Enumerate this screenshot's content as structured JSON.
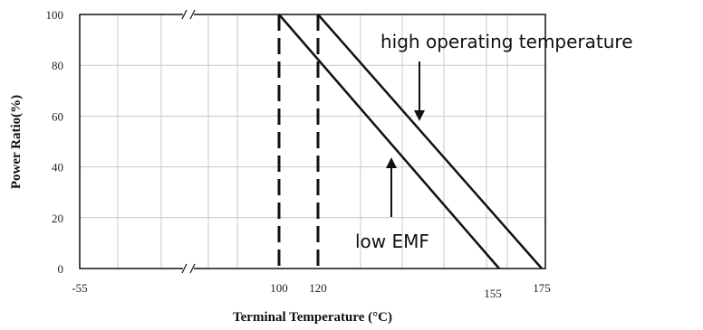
{
  "chart_data": {
    "type": "line",
    "xlabel": "Terminal Temperature (°C)",
    "ylabel": "Power Ratio(%)",
    "ylim": [
      0,
      100
    ],
    "y_ticks": [
      "0",
      "20",
      "40",
      "60",
      "80",
      "100"
    ],
    "x_tick_labels": [
      "-55",
      "100",
      "120",
      "155",
      "175"
    ],
    "x_axis_break": true,
    "grid": true,
    "series": [
      {
        "name": "low EMF",
        "x": [
          100,
          155
        ],
        "y": [
          100,
          0
        ]
      },
      {
        "name": "high operating temperature",
        "x": [
          120,
          175
        ],
        "y": [
          100,
          0
        ]
      }
    ],
    "reference_lines": [
      {
        "x": 100,
        "style": "dashed"
      },
      {
        "x": 120,
        "style": "dashed"
      }
    ],
    "annotations": [
      {
        "text": "high operating temperature",
        "target_series": "high operating temperature"
      },
      {
        "text": "low EMF",
        "target_series": "low EMF"
      }
    ]
  }
}
